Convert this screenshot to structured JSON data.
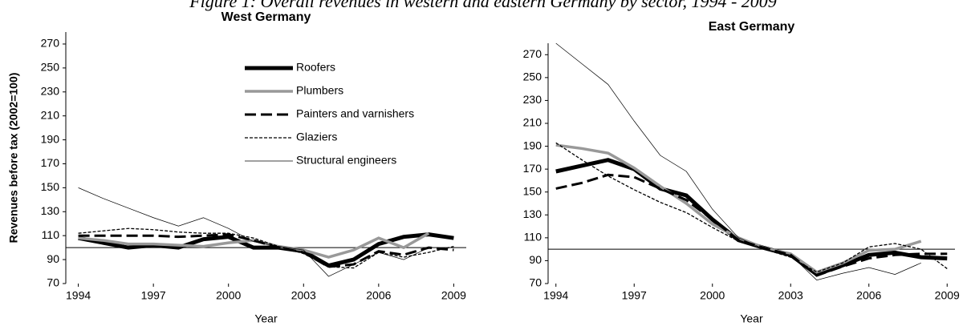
{
  "figure_title": "Figure 1: Overall revenues in western and eastern Germany by sector, 1994 - 2009",
  "chart_data": [
    {
      "type": "line",
      "title": "West Germany",
      "ylabel": "Revenues before tax (2002=100)",
      "xlabel": "Year",
      "x": [
        1994,
        1995,
        1996,
        1997,
        1998,
        1999,
        2000,
        2001,
        2002,
        2003,
        2004,
        2005,
        2006,
        2007,
        2008,
        2009
      ],
      "xlim": [
        1993.5,
        2009.5
      ],
      "xticks": [
        1994,
        1997,
        2000,
        2003,
        2006,
        2009
      ],
      "ylim": [
        70,
        280
      ],
      "yticks": [
        70,
        90,
        110,
        130,
        150,
        170,
        190,
        210,
        230,
        250,
        270
      ],
      "hline": 100,
      "legend": "upper center",
      "series": [
        {
          "name": "Roofers",
          "color": "#000000",
          "style": "thick",
          "values": [
            108,
            104,
            100,
            102,
            100,
            107,
            109,
            100,
            100,
            97,
            85,
            90,
            103,
            109,
            111,
            108
          ]
        },
        {
          "name": "Plumbers",
          "color": "#999999",
          "style": "medium",
          "values": [
            108,
            106,
            103,
            103,
            102,
            101,
            104,
            106,
            101,
            98,
            92,
            98,
            108,
            100,
            112,
            null
          ]
        },
        {
          "name": "Painters and varnishers",
          "color": "#000000",
          "style": "dashed",
          "values": [
            110,
            110,
            110,
            110,
            109,
            110,
            111,
            106,
            100,
            96,
            84,
            86,
            97,
            94,
            100,
            98
          ]
        },
        {
          "name": "Glaziers",
          "color": "#000000",
          "style": "dotted",
          "values": [
            112,
            114,
            116,
            115,
            113,
            112,
            112,
            108,
            101,
            95,
            84,
            83,
            96,
            92,
            96,
            101
          ]
        },
        {
          "name": "Structural engineers",
          "color": "#000000",
          "style": "thin",
          "values": [
            150,
            141,
            133,
            125,
            118,
            125,
            116,
            105,
            101,
            98,
            76,
            86,
            96,
            90,
            100,
            null
          ]
        }
      ]
    },
    {
      "type": "line",
      "title": "East Germany",
      "xlabel": "Year",
      "x": [
        1994,
        1995,
        1996,
        1997,
        1998,
        1999,
        2000,
        2001,
        2002,
        2003,
        2004,
        2005,
        2006,
        2007,
        2008,
        2009
      ],
      "xlim": [
        1993.7,
        2009.3
      ],
      "xticks": [
        1994,
        1997,
        2000,
        2003,
        2006,
        2009
      ],
      "ylim": [
        70,
        280
      ],
      "yticks": [
        70,
        90,
        110,
        130,
        150,
        170,
        190,
        210,
        230,
        250,
        270
      ],
      "hline": 100,
      "series": [
        {
          "color": "#000000",
          "style": "thick",
          "values": [
            168,
            173,
            178,
            170,
            153,
            147,
            126,
            108,
            101,
            95,
            78,
            86,
            95,
            97,
            93,
            92
          ]
        },
        {
          "color": "#999999",
          "style": "medium",
          "values": [
            191,
            188,
            184,
            171,
            155,
            140,
            122,
            110,
            101,
            96,
            80,
            88,
            99,
            100,
            107,
            null
          ]
        },
        {
          "color": "#000000",
          "style": "dashed",
          "values": [
            153,
            158,
            165,
            163,
            153,
            143,
            126,
            108,
            101,
            95,
            77,
            85,
            92,
            95,
            96,
            96
          ]
        },
        {
          "color": "#000000",
          "style": "dotted",
          "values": [
            193,
            178,
            164,
            152,
            141,
            132,
            119,
            107,
            100,
            93,
            80,
            88,
            102,
            105,
            100,
            83
          ]
        },
        {
          "color": "#000000",
          "style": "thin",
          "values": [
            280,
            262,
            244,
            212,
            182,
            168,
            135,
            110,
            100,
            95,
            73,
            79,
            84,
            78,
            88,
            null
          ]
        }
      ]
    }
  ]
}
